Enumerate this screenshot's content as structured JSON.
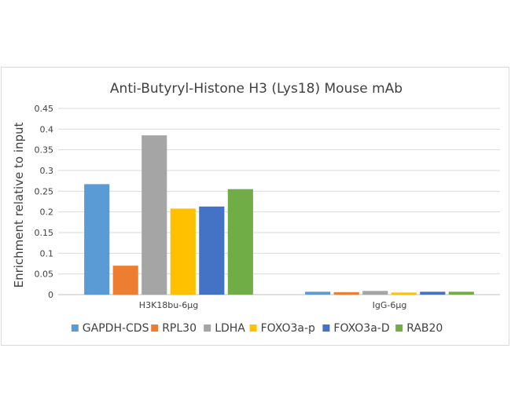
{
  "chart_data": {
    "type": "bar",
    "title": "Anti-Butyryl-Histone H3 (Lys18) Mouse mAb",
    "xlabel": "",
    "ylabel": "Enrichment relative to input",
    "ylim": [
      0,
      0.45
    ],
    "yticks": [
      "0",
      "0.05",
      "0.1",
      "0.15",
      "0.2",
      "0.25",
      "0.3",
      "0.35",
      "0.4",
      "0.45"
    ],
    "grid": true,
    "legend_position": "bottom",
    "categories": [
      "H3K18bu-6μg",
      "IgG-6μg"
    ],
    "series": [
      {
        "name": "GAPDH-CDS",
        "color": "#5b9bd5",
        "values": [
          0.267,
          0.007
        ]
      },
      {
        "name": "RPL30",
        "color": "#ed7d31",
        "values": [
          0.07,
          0.006
        ]
      },
      {
        "name": "LDHA",
        "color": "#a5a5a5",
        "values": [
          0.385,
          0.009
        ]
      },
      {
        "name": "FOXO3a-p",
        "color": "#ffc000",
        "values": [
          0.208,
          0.005
        ]
      },
      {
        "name": "FOXO3a-D",
        "color": "#4472c4",
        "values": [
          0.213,
          0.007
        ]
      },
      {
        "name": "RAB20",
        "color": "#70ad47",
        "values": [
          0.255,
          0.007
        ]
      }
    ]
  }
}
